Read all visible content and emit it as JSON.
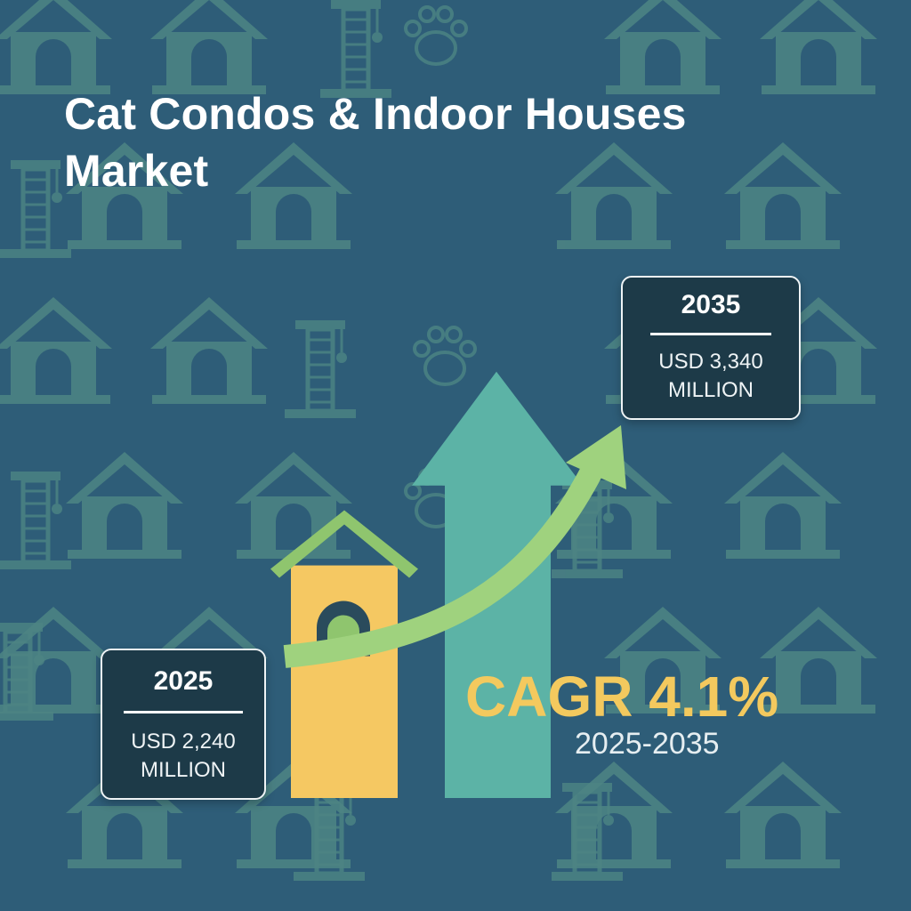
{
  "title": {
    "line1": "Cat Condos & Indoor Houses",
    "line2": "Market"
  },
  "colors": {
    "background": "#2e5d78",
    "pattern": "#4d8584",
    "bar_2025": "#f5c862",
    "bar_2035": "#5cb3a6",
    "roof": "#8fc56e",
    "trend_arrow": "#9fd27e",
    "box_bg": "#1d3a48",
    "cagr_text": "#f3c95e"
  },
  "boxes": {
    "start": {
      "year": "2025",
      "value": "USD 2,240",
      "unit": "MILLION"
    },
    "end": {
      "year": "2035",
      "value": "USD 3,340",
      "unit": "MILLION"
    }
  },
  "cagr": {
    "label": "CAGR 4.1%",
    "period": "2025-2035"
  },
  "icons": [
    "cat-house-icon",
    "cat-tree-icon",
    "paw-print-icon",
    "up-arrow-icon",
    "trend-arrow-icon"
  ],
  "chart_data": {
    "type": "bar",
    "title": "Cat Condos & Indoor Houses Market",
    "categories": [
      "2025",
      "2035"
    ],
    "values": [
      2240,
      3340
    ],
    "unit": "USD Million",
    "cagr_percent": 4.1,
    "period": "2025-2035"
  }
}
